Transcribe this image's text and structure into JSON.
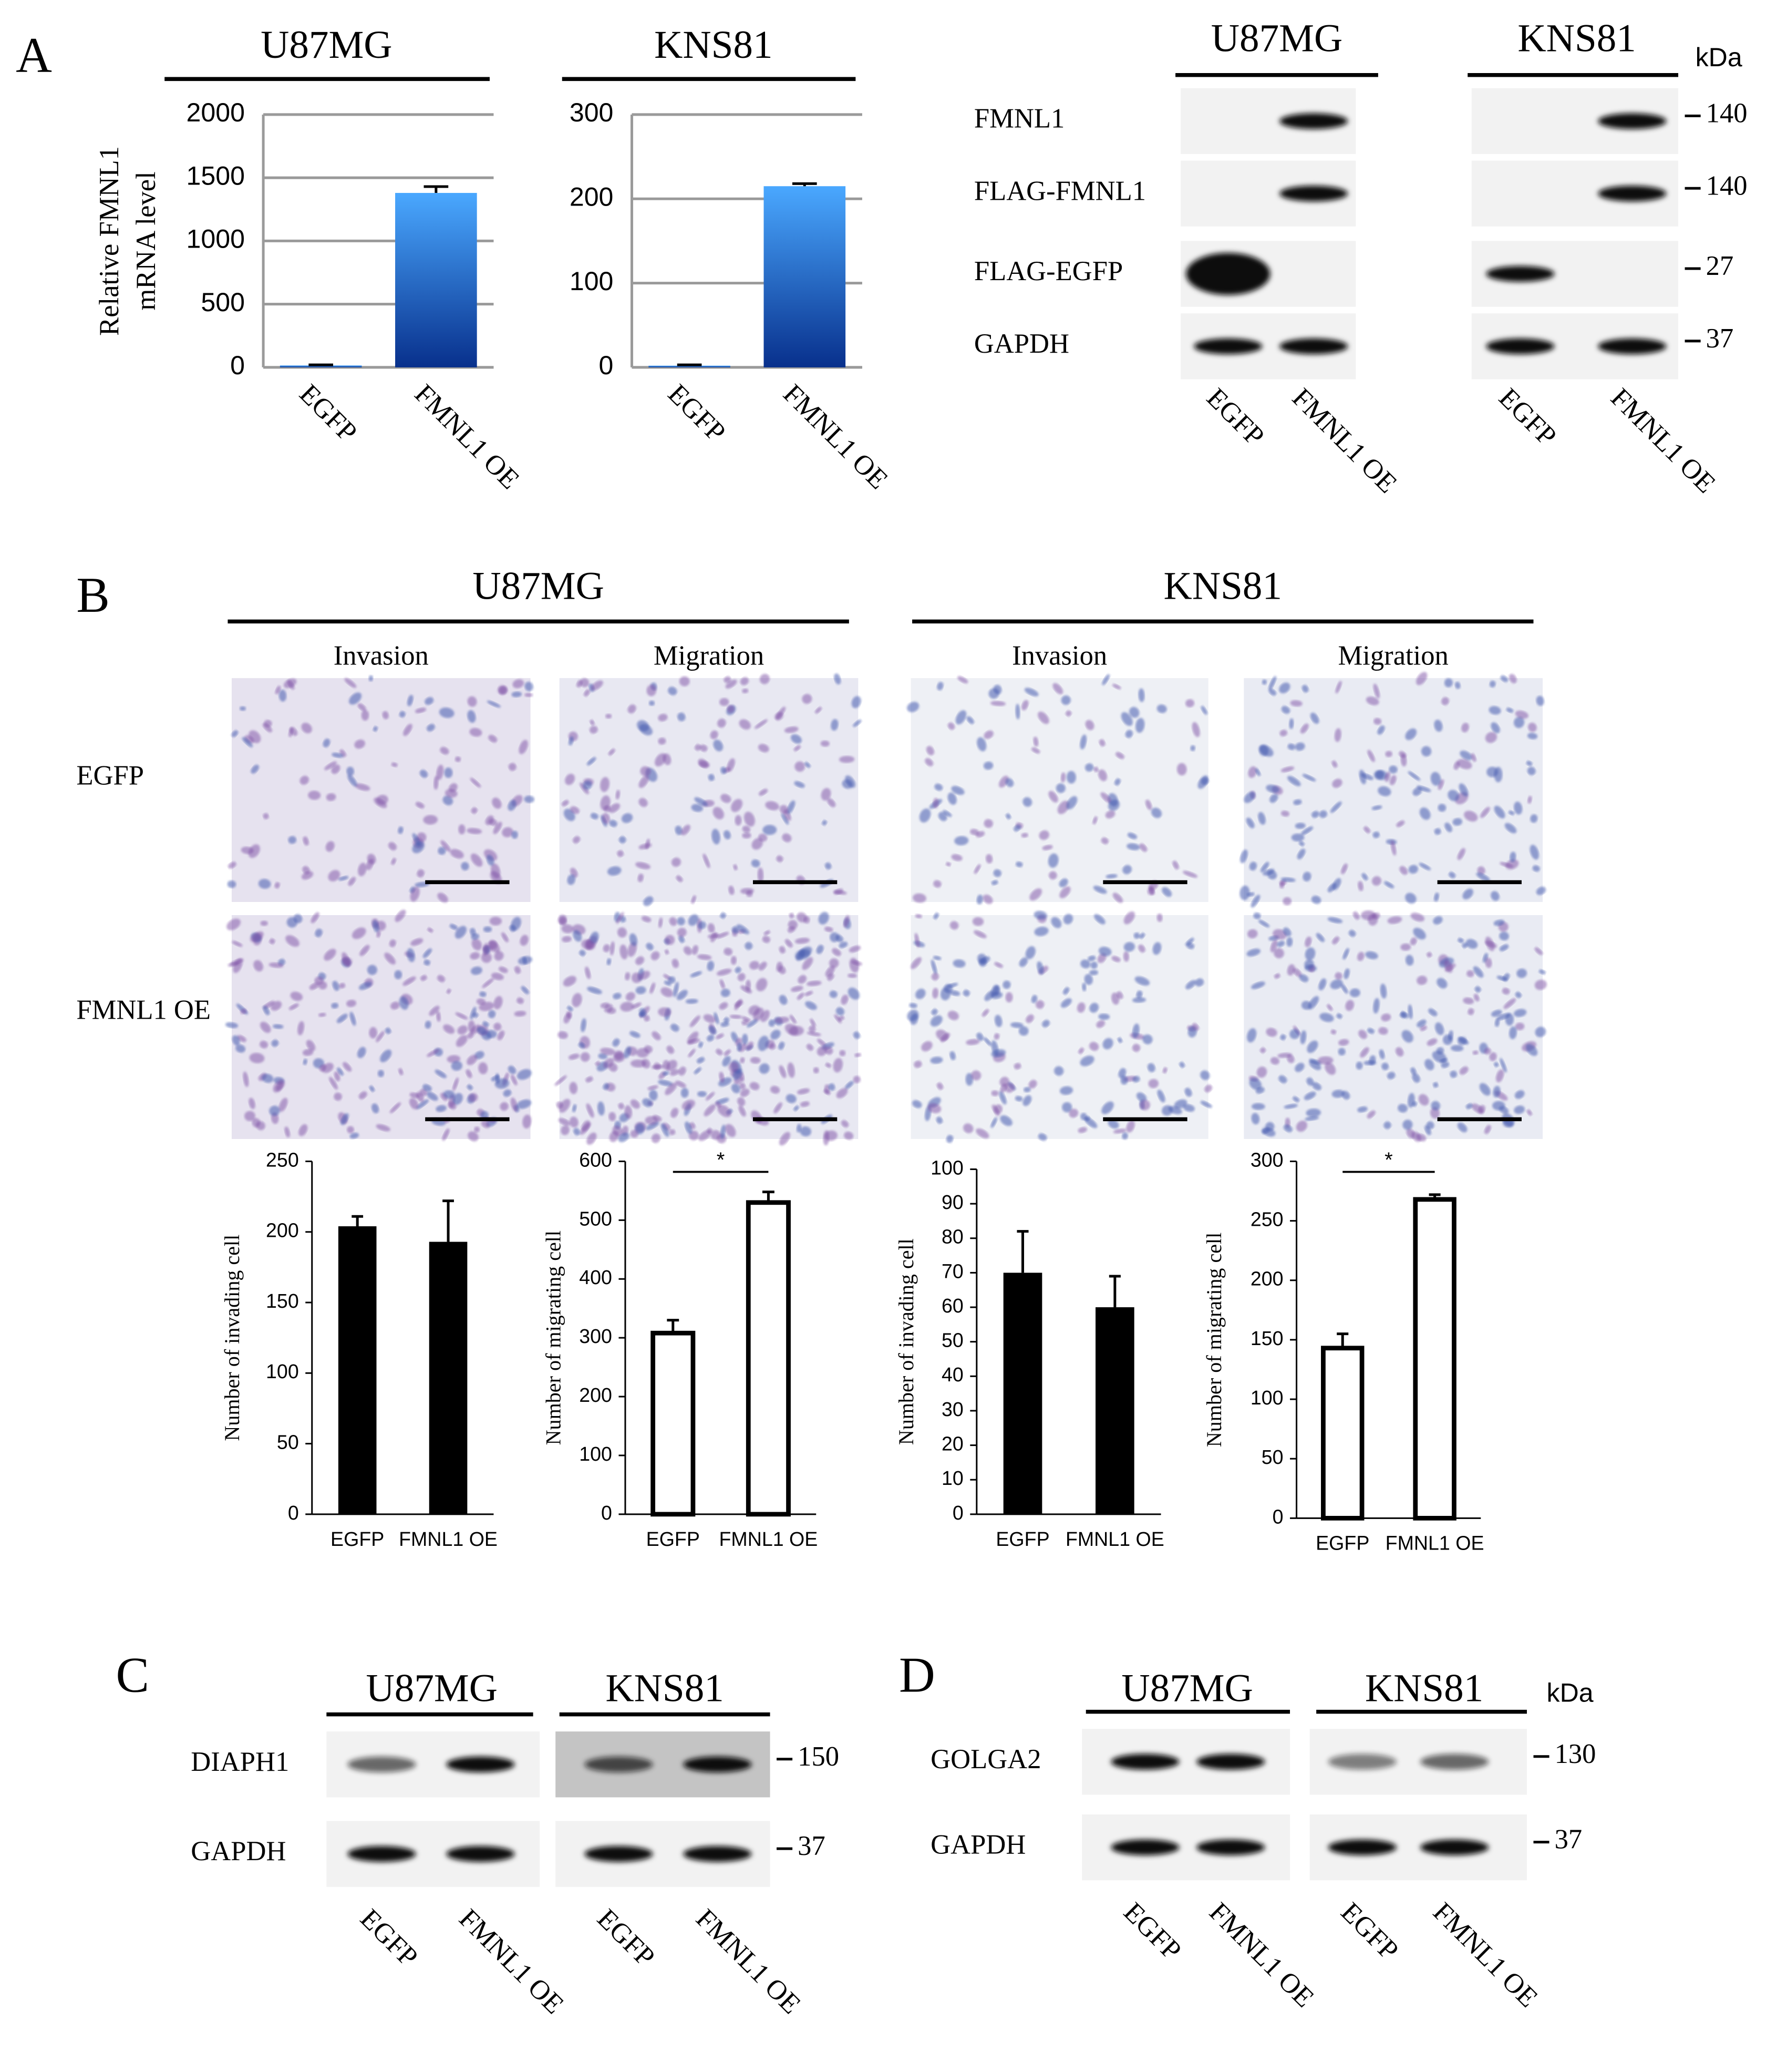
{
  "panel_labels": [
    "A",
    "B",
    "C",
    "D"
  ],
  "chart_data": [
    {
      "type": "bar",
      "title": "U87MG",
      "ylabel": [
        "Relative FMNL1",
        "mRNA level"
      ],
      "categories": [
        "EGFP",
        "FMNL1 OE"
      ],
      "values": [
        15,
        1380
      ],
      "errors": [
        5,
        50
      ],
      "ylim": [
        0,
        2000
      ],
      "yticks": [
        0,
        500,
        1000,
        1500,
        2000
      ],
      "grid": true,
      "gradient": [
        "#4aa8ff",
        "#08308c"
      ]
    },
    {
      "type": "bar",
      "title": "KNS81",
      "categories": [
        "EGFP",
        "FMNL1 OE"
      ],
      "values": [
        2,
        215
      ],
      "errors": [
        1,
        3
      ],
      "ylim": [
        0,
        300
      ],
      "yticks": [
        0,
        100,
        200,
        300
      ],
      "grid": true,
      "gradient": [
        "#4aa8ff",
        "#08308c"
      ]
    },
    {
      "type": "bar",
      "ylabel": [
        "Number of invading cell"
      ],
      "categories": [
        "EGFP",
        "FMNL1 OE"
      ],
      "values": [
        204,
        193
      ],
      "errors": [
        7,
        29
      ],
      "ylim": [
        0,
        250
      ],
      "yticks": [
        0,
        50,
        100,
        150,
        200,
        250
      ],
      "grid": false,
      "color": "#000000",
      "bar_fill": "solid"
    },
    {
      "type": "bar",
      "ylabel": [
        "Number of migrating cell"
      ],
      "categories": [
        "EGFP",
        "FMNL1 OE"
      ],
      "values": [
        308,
        530
      ],
      "errors": [
        22,
        18
      ],
      "ylim": [
        0,
        600
      ],
      "yticks": [
        0,
        100,
        200,
        300,
        400,
        500,
        600
      ],
      "grid": false,
      "color": "#000000",
      "bar_fill": "none",
      "significance": "*"
    },
    {
      "type": "bar",
      "ylabel": [
        "Number of invading cell"
      ],
      "categories": [
        "EGFP",
        "FMNL1 OE"
      ],
      "values": [
        70,
        60
      ],
      "errors": [
        12,
        9
      ],
      "ylim": [
        0,
        100
      ],
      "yticks": [
        0,
        10,
        20,
        30,
        40,
        50,
        60,
        70,
        80,
        90,
        100
      ],
      "grid": false,
      "color": "#000000",
      "bar_fill": "solid"
    },
    {
      "type": "bar",
      "ylabel": [
        "Number of migrating cell"
      ],
      "categories": [
        "EGFP",
        "FMNL1 OE"
      ],
      "values": [
        143,
        268
      ],
      "errors": [
        12,
        4
      ],
      "ylim": [
        0,
        300
      ],
      "yticks": [
        0,
        50,
        100,
        150,
        200,
        250,
        300
      ],
      "grid": false,
      "color": "#000000",
      "bar_fill": "none",
      "significance": "*"
    }
  ],
  "blots": {
    "A": {
      "groups": [
        "U87MG",
        "KNS81"
      ],
      "unit": "kDa",
      "rows": [
        "FMNL1",
        "FLAG-FMNL1",
        "FLAG-EGFP",
        "GAPDH"
      ],
      "markers": [
        140,
        140,
        27,
        37
      ],
      "lanes": [
        "EGFP",
        "FMNL1 OE"
      ]
    },
    "C": {
      "groups": [
        "U87MG",
        "KNS81"
      ],
      "rows": [
        "DIAPH1",
        "GAPDH"
      ],
      "markers": [
        150,
        37
      ],
      "lanes": [
        "EGFP",
        "FMNL1 OE"
      ]
    },
    "D": {
      "groups": [
        "U87MG",
        "KNS81"
      ],
      "unit": "kDa",
      "rows": [
        "GOLGA2",
        "GAPDH"
      ],
      "markers": [
        130,
        37
      ],
      "lanes": [
        "EGFP",
        "FMNL1 OE"
      ]
    }
  },
  "micrographs": {
    "groups": [
      "U87MG",
      "KNS81"
    ],
    "columns": [
      "Invasion",
      "Migration"
    ],
    "rows": [
      "EGFP",
      "FMNL1 OE"
    ]
  }
}
